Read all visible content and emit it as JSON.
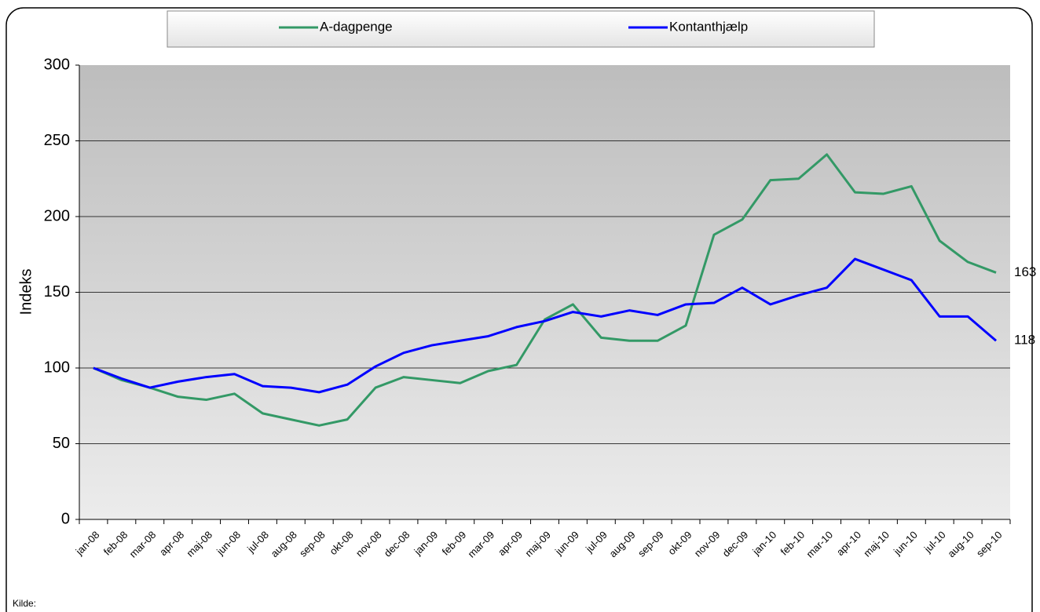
{
  "chart_data": {
    "type": "line",
    "y_label": "Indeks",
    "source": "Kilde:",
    "categories": [
      "jan-08",
      "feb-08",
      "mar-08",
      "apr-08",
      "maj-08",
      "jun-08",
      "jul-08",
      "aug-08",
      "sep-08",
      "okt-08",
      "nov-08",
      "dec-08",
      "jan-09",
      "feb-09",
      "mar-09",
      "apr-09",
      "maj-09",
      "jun-09",
      "jul-09",
      "aug-09",
      "sep-09",
      "okt-09",
      "nov-09",
      "dec-09",
      "jan-10",
      "feb-10",
      "mar-10",
      "apr-10",
      "maj-10",
      "jun-10",
      "jul-10",
      "aug-10",
      "sep-10"
    ],
    "series": [
      {
        "name": "A-dagpenge",
        "color": "#339966",
        "values": [
          100,
          92,
          87,
          81,
          79,
          83,
          70,
          66,
          62,
          66,
          87,
          94,
          92,
          90,
          98,
          102,
          132,
          142,
          120,
          118,
          118,
          128,
          188,
          198,
          224,
          225,
          241,
          216,
          215,
          220,
          184,
          170,
          163
        ]
      },
      {
        "name": "Kontanthjælp",
        "color": "#0000ff",
        "values": [
          100,
          93,
          87,
          91,
          94,
          96,
          88,
          87,
          84,
          89,
          101,
          110,
          115,
          118,
          121,
          127,
          131,
          137,
          134,
          138,
          135,
          142,
          143,
          153,
          142,
          148,
          153,
          172,
          165,
          158,
          134,
          134,
          118
        ]
      }
    ],
    "ylim": [
      0,
      300
    ],
    "yticks": [
      0,
      50,
      100,
      150,
      200,
      250,
      300
    ],
    "grid": true
  }
}
